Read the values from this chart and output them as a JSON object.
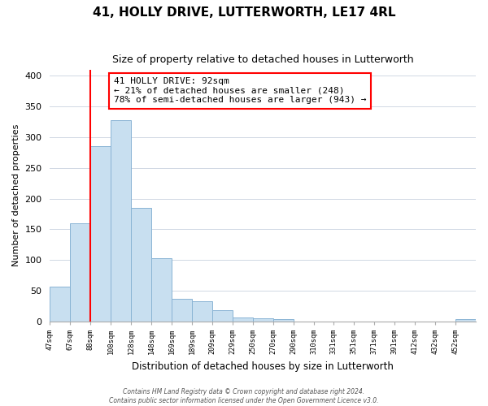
{
  "title": "41, HOLLY DRIVE, LUTTERWORTH, LE17 4RL",
  "subtitle": "Size of property relative to detached houses in Lutterworth",
  "xlabel": "Distribution of detached houses by size in Lutterworth",
  "ylabel": "Number of detached properties",
  "bin_labels": [
    "47sqm",
    "67sqm",
    "88sqm",
    "108sqm",
    "128sqm",
    "148sqm",
    "169sqm",
    "189sqm",
    "209sqm",
    "229sqm",
    "250sqm",
    "270sqm",
    "290sqm",
    "310sqm",
    "331sqm",
    "351sqm",
    "371sqm",
    "391sqm",
    "412sqm",
    "432sqm",
    "452sqm"
  ],
  "bar_heights": [
    57,
    160,
    285,
    328,
    185,
    103,
    37,
    32,
    18,
    6,
    5,
    4,
    0,
    0,
    0,
    0,
    0,
    0,
    0,
    0,
    4
  ],
  "bar_color": "#c8dff0",
  "bar_edge_color": "#8ab4d4",
  "red_line_bar_index": 2,
  "ylim": [
    0,
    410
  ],
  "yticks": [
    0,
    50,
    100,
    150,
    200,
    250,
    300,
    350,
    400
  ],
  "annotation_title": "41 HOLLY DRIVE: 92sqm",
  "annotation_line1": "← 21% of detached houses are smaller (248)",
  "annotation_line2": "78% of semi-detached houses are larger (943) →",
  "footnote1": "Contains HM Land Registry data © Crown copyright and database right 2024.",
  "footnote2": "Contains public sector information licensed under the Open Government Licence v3.0.",
  "background_color": "#ffffff",
  "grid_color": "#d0d8e4"
}
